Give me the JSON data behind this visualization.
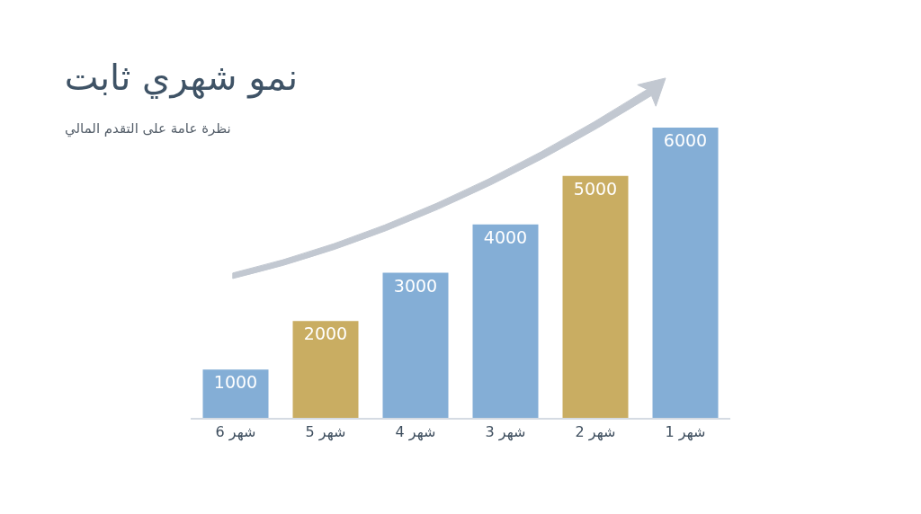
{
  "chart_data": {
    "type": "bar",
    "title": "نمو شهري ثابت",
    "subtitle": "نظرة عامة على التقدم المالي",
    "categories": [
      "شهر 6",
      "شهر 5",
      "شهر 4",
      "شهر 3",
      "شهر 2",
      "شهر 1"
    ],
    "values": [
      1000,
      2000,
      3000,
      4000,
      5000,
      6000
    ],
    "colors": [
      "#84aed6",
      "#c9ad62",
      "#84aed6",
      "#84aed6",
      "#c9ad62",
      "#84aed6"
    ],
    "data_labels": true,
    "legend": false
  }
}
